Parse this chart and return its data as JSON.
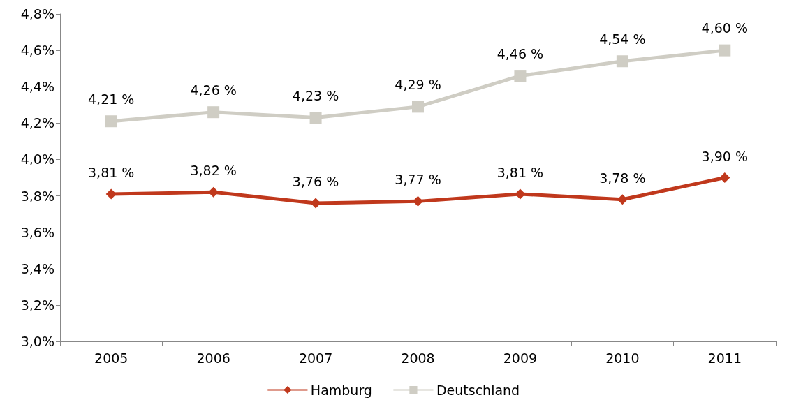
{
  "chart_data": {
    "type": "line",
    "categories": [
      "2005",
      "2006",
      "2007",
      "2008",
      "2009",
      "2010",
      "2011"
    ],
    "series": [
      {
        "name": "Hamburg",
        "color": "#c0381c",
        "marker": "diamond",
        "values": [
          3.81,
          3.82,
          3.76,
          3.77,
          3.81,
          3.78,
          3.9
        ],
        "value_labels": [
          "3,81 %",
          "3,82 %",
          "3,76 %",
          "3,77 %",
          "3,81 %",
          "3,78 %",
          "3,90 %"
        ]
      },
      {
        "name": "Deutschland",
        "color": "#cfcdc4",
        "marker": "square",
        "values": [
          4.21,
          4.26,
          4.23,
          4.29,
          4.46,
          4.54,
          4.6
        ],
        "value_labels": [
          "4,21 %",
          "4,26 %",
          "4,23 %",
          "4,29 %",
          "4,46 %",
          "4,54 %",
          "4,60 %"
        ]
      }
    ],
    "ylim": [
      3.0,
      4.8
    ],
    "yticks": [
      {
        "value": 3.0,
        "label": "3,0%"
      },
      {
        "value": 3.2,
        "label": "3,2%"
      },
      {
        "value": 3.4,
        "label": "3,4%"
      },
      {
        "value": 3.6,
        "label": "3,6%"
      },
      {
        "value": 3.8,
        "label": "3,8%"
      },
      {
        "value": 4.0,
        "label": "4,0%"
      },
      {
        "value": 4.2,
        "label": "4,2%"
      },
      {
        "value": 4.4,
        "label": "4,4%"
      },
      {
        "value": 4.6,
        "label": "4,6%"
      },
      {
        "value": 4.8,
        "label": "4,8%"
      }
    ],
    "grid": false,
    "legend": "bottom",
    "line_style": "solid"
  }
}
